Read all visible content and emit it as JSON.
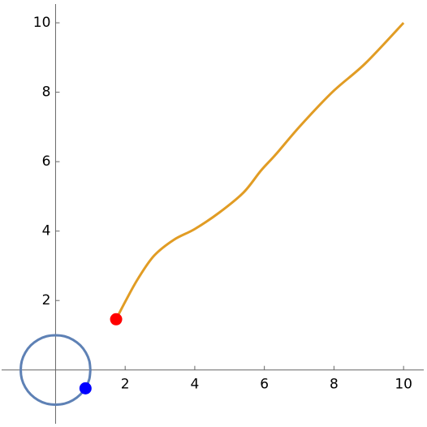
{
  "chart_data": {
    "type": "line",
    "xlim": [
      -1.55,
      10.58
    ],
    "ylim": [
      -1.55,
      10.54
    ],
    "xticks": [
      2,
      4,
      6,
      8,
      10
    ],
    "yticks": [
      2,
      4,
      6,
      8,
      10
    ],
    "series": [
      {
        "mode": "line",
        "color": "#5e81b5",
        "x": [
          1,
          0.97,
          0.87,
          0.71,
          0.5,
          0.26,
          0,
          -0.26,
          -0.5,
          -0.71,
          -0.87,
          -0.97,
          -1,
          -0.97,
          -0.87,
          -0.71,
          -0.5,
          -0.26,
          0,
          0.26,
          0.5,
          0.71,
          0.87,
          0.97,
          1
        ],
        "values": [
          0,
          0.26,
          0.5,
          0.71,
          0.87,
          0.97,
          1,
          0.97,
          0.87,
          0.71,
          0.5,
          0.26,
          0,
          -0.26,
          -0.5,
          -0.71,
          -0.87,
          -0.97,
          -1,
          -0.97,
          -0.87,
          -0.71,
          -0.5,
          -0.26,
          0
        ]
      },
      {
        "mode": "line",
        "color": "#e19c24",
        "x": [
          1.74,
          2.02,
          2.37,
          2.83,
          3.4,
          4.0,
          4.7,
          5.4,
          5.9,
          6.33,
          7.03,
          7.96,
          8.9,
          10
        ],
        "values": [
          1.46,
          2.0,
          2.63,
          3.29,
          3.75,
          4.06,
          4.53,
          5.11,
          5.74,
          6.21,
          7.03,
          8.01,
          8.83,
          10
        ]
      },
      {
        "mode": "marker",
        "color": "#ff0000",
        "x": [
          1.74
        ],
        "values": [
          1.46
        ]
      },
      {
        "mode": "marker",
        "color": "#0000ff",
        "x": [
          0.86
        ],
        "values": [
          -0.53
        ]
      }
    ]
  }
}
